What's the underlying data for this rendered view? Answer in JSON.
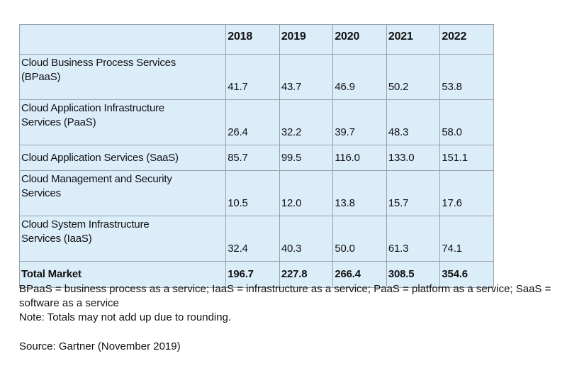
{
  "table": {
    "headers": [
      "",
      "2018",
      "2019",
      "2020",
      "2021",
      "2022"
    ],
    "rows": [
      {
        "label_lines": [
          "Cloud Business Process Services",
          "(BPaaS)"
        ],
        "values": [
          "41.7",
          "43.7",
          "46.9",
          "50.2",
          "53.8"
        ]
      },
      {
        "label_lines": [
          "Cloud Application Infrastructure",
          "Services (PaaS)"
        ],
        "values": [
          "26.4",
          "32.2",
          "39.7",
          "48.3",
          "58.0"
        ]
      },
      {
        "label_lines": [
          "Cloud Application Services (SaaS)"
        ],
        "values": [
          "85.7",
          "99.5",
          "116.0",
          "133.0",
          "151.1"
        ]
      },
      {
        "label_lines": [
          "Cloud Management and Security",
          "Services"
        ],
        "values": [
          "10.5",
          "12.0",
          "13.8",
          "15.7",
          "17.6"
        ]
      },
      {
        "label_lines": [
          "Cloud System Infrastructure",
          "Services (IaaS)"
        ],
        "values": [
          "32.4",
          "40.3",
          "50.0",
          "61.3",
          "74.1"
        ]
      }
    ],
    "total": {
      "label": "Total Market",
      "values": [
        "196.7",
        "227.8",
        "266.4",
        "308.5",
        "354.6"
      ]
    }
  },
  "notes": {
    "abbreviations": "BPaaS = business process as a service; IaaS = infrastructure as a service; PaaS = platform as a service; SaaS = software as a service",
    "rounding": "Note: Totals may not add up due to rounding.",
    "source": "Source: Gartner (November 2019)"
  },
  "colors": {
    "table_background": "#dcedfa",
    "border": "#9aa3aa"
  }
}
